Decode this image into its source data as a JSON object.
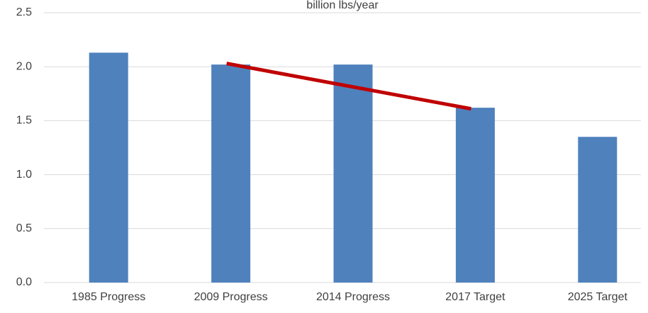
{
  "chart_data": {
    "type": "bar",
    "title": "billion lbs/year",
    "categories": [
      "1985 Progress",
      "2009 Progress",
      "2014 Progress",
      "2017 Target",
      "2025 Target"
    ],
    "series": [
      {
        "color": "#4f81bd",
        "values": [
          2.13,
          2.02,
          2.02,
          1.62,
          1.35
        ]
      },
      {
        "type": "line",
        "color": "#c00000",
        "values": [
          null,
          2.03,
          null,
          1.61,
          null
        ]
      }
    ],
    "ylim": [
      0,
      2.5
    ],
    "yticks": [
      {
        "value": 0,
        "label": "0.0"
      },
      0.5,
      {
        "value": 1,
        "label": "1.0"
      },
      1.5,
      {
        "value": 2,
        "label": "2.0"
      },
      2.5
    ],
    "grid": true
  }
}
